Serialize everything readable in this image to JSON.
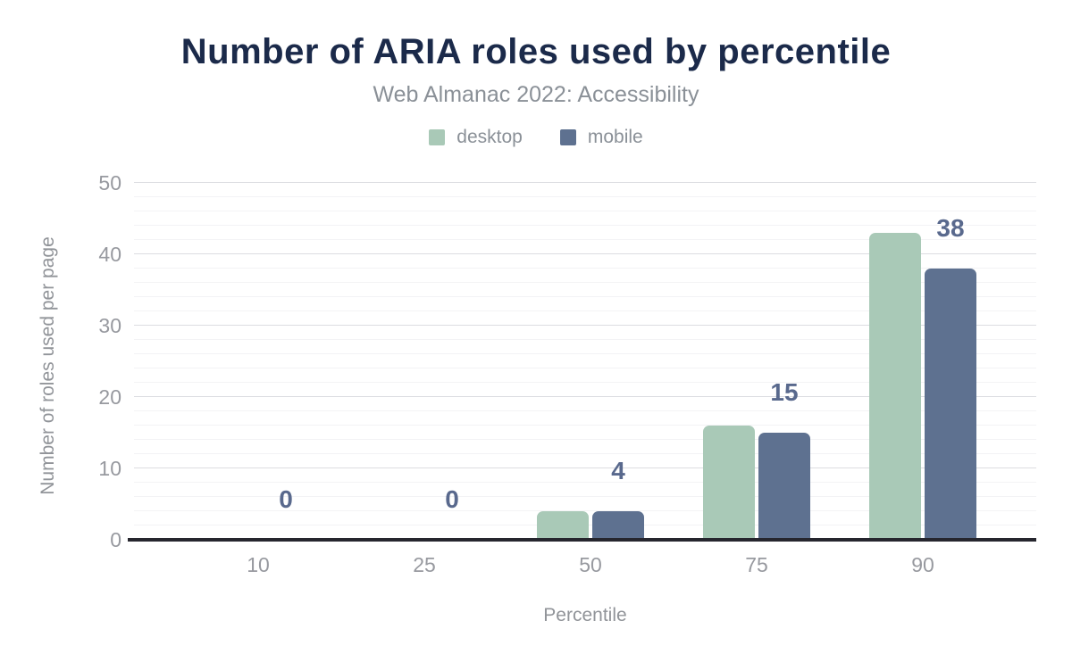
{
  "chart_data": {
    "type": "bar",
    "title": "Number of ARIA roles used by percentile",
    "subtitle": "Web Almanac 2022: Accessibility",
    "xlabel": "Percentile",
    "ylabel": "Number of roles used per page",
    "categories": [
      "10",
      "25",
      "50",
      "75",
      "90"
    ],
    "series": [
      {
        "name": "desktop",
        "color": "#a9c9b7",
        "values": [
          0,
          0,
          4,
          16,
          43
        ]
      },
      {
        "name": "mobile",
        "color": "#5e7190",
        "values": [
          0,
          0,
          4,
          15,
          38
        ]
      }
    ],
    "bar_labels": {
      "series": "mobile",
      "values": [
        "0",
        "0",
        "4",
        "15",
        "38"
      ]
    },
    "y_ticks": [
      "0",
      "10",
      "20",
      "30",
      "40",
      "50"
    ],
    "ylim": [
      0,
      50
    ],
    "grid": {
      "major_every": 10,
      "minor_every": 2,
      "minor_on": true
    },
    "legend_position": "top"
  },
  "colors": {
    "title": "#1b2a4a",
    "subtitle": "#8a9097",
    "data_label": "#59698d",
    "axis_line": "#26262e",
    "desktop": "#a9c9b7",
    "mobile": "#5e7190"
  }
}
